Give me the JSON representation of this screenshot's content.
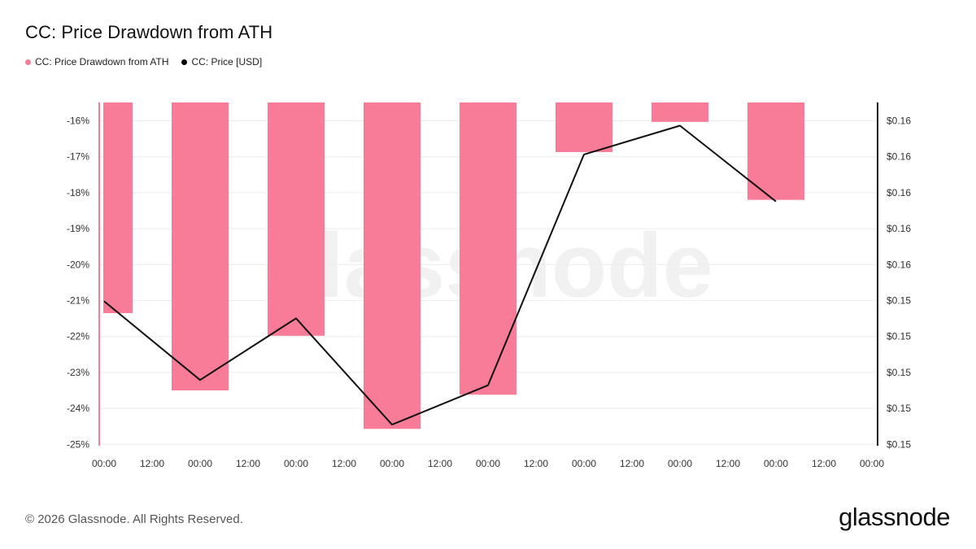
{
  "header": {
    "title": "CC: Price Drawdown from ATH"
  },
  "legend": [
    {
      "label": "CC: Price Drawdown from ATH",
      "color": "#f87b97"
    },
    {
      "label": "CC: Price [USD]",
      "color": "#000000"
    }
  ],
  "watermark": "glassnode",
  "footer": {
    "copyright": "© 2026 Glassnode. All Rights Reserved.",
    "logo": "glassnode"
  },
  "chart_data": {
    "type": "bar",
    "x_tick_labels": [
      "00:00",
      "12:00",
      "00:00",
      "12:00",
      "00:00",
      "12:00",
      "00:00",
      "12:00",
      "00:00",
      "12:00",
      "00:00",
      "12:00",
      "00:00",
      "12:00",
      "00:00",
      "12:00",
      "00:00"
    ],
    "left_axis": {
      "ticks": [
        -16,
        -17,
        -18,
        -19,
        -20,
        -21,
        -22,
        -23,
        -24,
        -25
      ],
      "tick_labels": [
        "-16%",
        "-17%",
        "-18%",
        "-19%",
        "-20%",
        "-21%",
        "-22%",
        "-23%",
        "-24%",
        "-25%"
      ],
      "ylim": [
        -25,
        -15.5
      ]
    },
    "right_axis": {
      "tick_labels": [
        "$0.16",
        "$0.16",
        "$0.16",
        "$0.16",
        "$0.16",
        "$0.15",
        "$0.15",
        "$0.15",
        "$0.15",
        "$0.15"
      ]
    },
    "series": [
      {
        "name": "CC: Price Drawdown from ATH",
        "type": "bar",
        "axis": "left",
        "color": "#f87b97",
        "x_index": [
          0,
          2,
          4,
          6,
          8,
          10,
          12,
          14
        ],
        "values": [
          -21.35,
          -23.5,
          -21.98,
          -24.57,
          -23.62,
          -16.87,
          -16.03,
          -18.2
        ]
      },
      {
        "name": "CC: Price [USD]",
        "type": "line",
        "axis": "right",
        "color": "#000000",
        "x_index": [
          0,
          2,
          4,
          6,
          8,
          10,
          12,
          14
        ],
        "values": [
          0.15352,
          0.15158,
          0.1531,
          0.15048,
          0.15145,
          0.15714,
          0.15785,
          0.15598
        ]
      }
    ],
    "grid": true,
    "legend_position": "top-left"
  }
}
